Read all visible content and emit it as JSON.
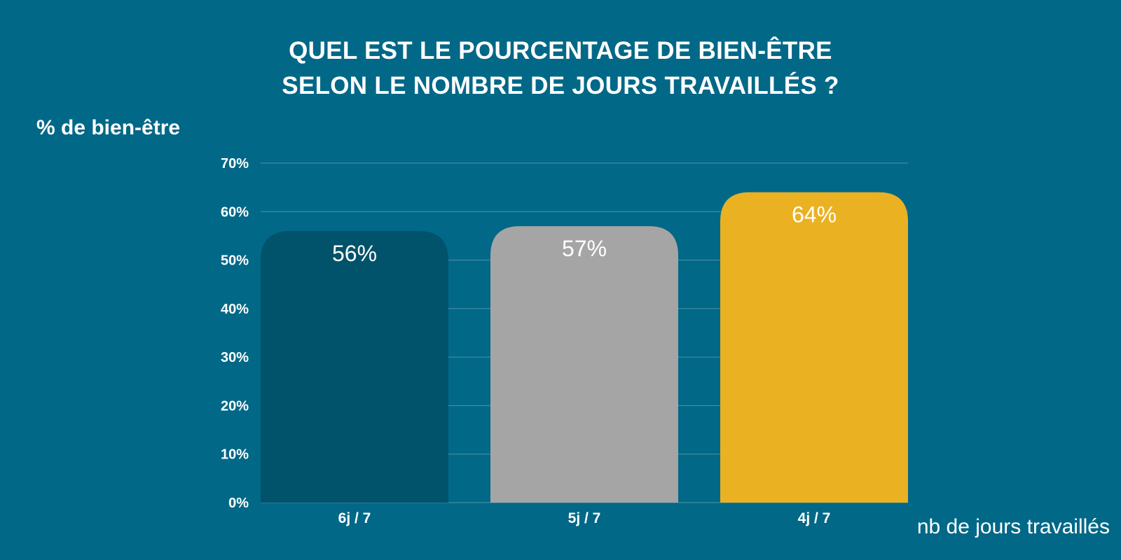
{
  "chart_data": {
    "type": "bar",
    "title_lines": [
      "QUEL EST LE POURCENTAGE DE BIEN-ÊTRE",
      "SELON LE NOMBRE DE JOURS TRAVAILLÉS ?"
    ],
    "ylabel": "%  de bien-être",
    "xlabel": "nb de jours travaillés",
    "categories": [
      "6j / 7",
      "5j / 7",
      "4j / 7"
    ],
    "values": [
      56,
      57,
      64
    ],
    "data_labels": [
      "56%",
      "57%",
      "64%"
    ],
    "bar_colors": [
      "#00536a",
      "#a5a5a5",
      "#eab122"
    ],
    "ylim": [
      0,
      70
    ],
    "yticks": [
      0,
      10,
      20,
      30,
      40,
      50,
      60,
      70
    ],
    "ytick_labels": [
      "0%",
      "10%",
      "20%",
      "30%",
      "40%",
      "50%",
      "60%",
      "70%"
    ],
    "grid": true,
    "legend": "none",
    "colors": {
      "background": "#026887",
      "text": "#ffffff",
      "gridline": "#4f93a8"
    }
  }
}
